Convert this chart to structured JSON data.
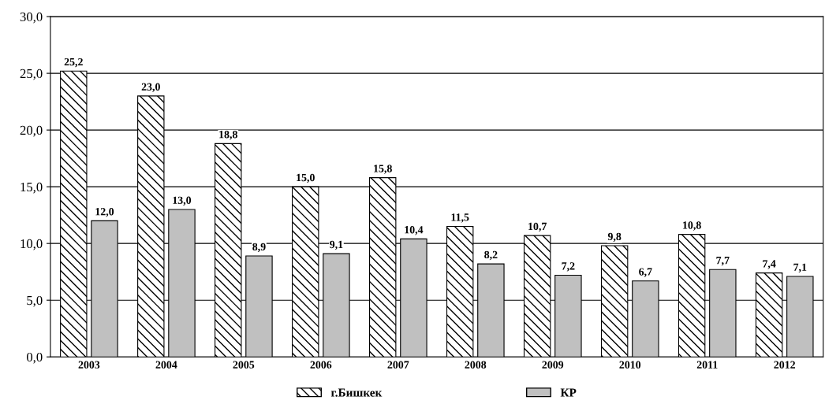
{
  "chart_data": {
    "type": "bar",
    "categories": [
      "2003",
      "2004",
      "2005",
      "2006",
      "2007",
      "2008",
      "2009",
      "2010",
      "2011",
      "2012"
    ],
    "series": [
      {
        "name": "г.Бишкек",
        "color": "#000000",
        "values": [
          25.2,
          23.0,
          18.8,
          15.0,
          15.8,
          11.5,
          10.7,
          9.8,
          10.8,
          7.4
        ],
        "value_labels": [
          "25,2",
          "23,0",
          "18,8",
          "15,0",
          "15,8",
          "11,5",
          "10,7",
          "9,8",
          "10,8",
          "7,4"
        ]
      },
      {
        "name": "КР",
        "color": "#c0c0c0",
        "values": [
          12.0,
          13.0,
          8.9,
          9.1,
          10.4,
          8.2,
          7.2,
          6.7,
          7.7,
          7.1
        ],
        "value_labels": [
          "12,0",
          "13,0",
          "8,9",
          "9,1",
          "10,4",
          "8,2",
          "7,2",
          "6,7",
          "7,7",
          "7,1"
        ]
      }
    ],
    "ylim": [
      0,
      30
    ],
    "yticks": [
      {
        "value": 0,
        "label": "0,0"
      },
      {
        "value": 5,
        "label": "5,0"
      },
      {
        "value": 10,
        "label": "10,0"
      },
      {
        "value": 15,
        "label": "15,0"
      },
      {
        "value": 20,
        "label": "20,0"
      },
      {
        "value": 25,
        "label": "25,0"
      },
      {
        "value": 30,
        "label": "30,0"
      }
    ],
    "grid": "y",
    "legend": "bottom"
  }
}
